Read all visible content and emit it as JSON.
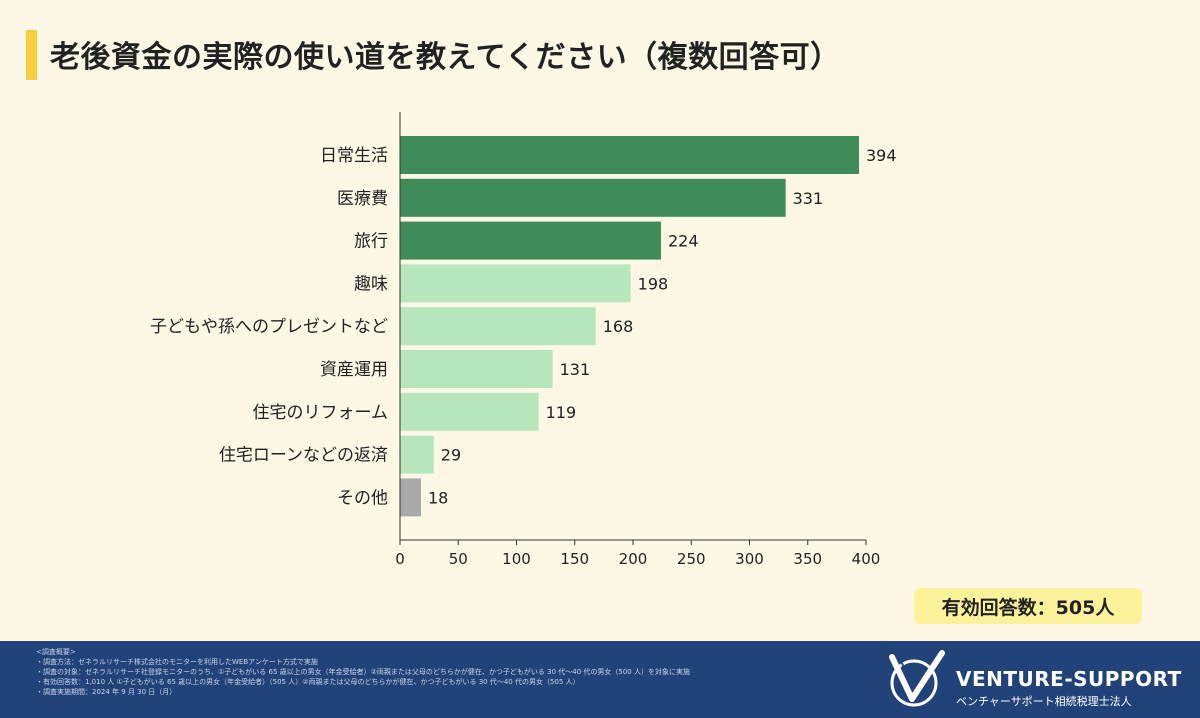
{
  "title": "老後資金の実際の使い道を教えてください（複数回答可）",
  "respondents": "有効回答数：505人",
  "chart_data": {
    "type": "bar",
    "orientation": "horizontal",
    "categories": [
      "日常生活",
      "医療費",
      "旅行",
      "趣味",
      "子どもや孫へのプレゼントなど",
      "資産運用",
      "住宅のリフォーム",
      "住宅ローンなどの返済",
      "その他"
    ],
    "values": [
      394,
      331,
      224,
      198,
      168,
      131,
      119,
      29,
      18
    ],
    "xlim": [
      0,
      400
    ],
    "xticks": [
      0,
      50,
      100,
      150,
      200,
      250,
      300,
      350,
      400
    ],
    "grid": false,
    "colors": [
      "#3f8c5a",
      "#3f8c5a",
      "#3f8c5a",
      "#b8e6bc",
      "#b8e6bc",
      "#b8e6bc",
      "#b8e6bc",
      "#b8e6bc",
      "#a9a9a9"
    ]
  },
  "footer": {
    "notes": [
      "<調査概要>",
      "・調査方法：ゼネラルリサーチ株式会社のモニターを利用したWEBアンケート方式で実施",
      "・調査の対象：ゼネラルリサーチ社登録モニターのうち、①子どもがいる 65 歳以上の男女（年金受給者）②両親または父母のどちらかが健在、かつ子どもがいる 30 代～40 代の男女（500 人）を対象に実施",
      "・有効回答数：1,010 人 ①子どもがいる 65 歳以上の男女（年金受給者）（505 人）②両親または父母のどちらかが健在、かつ子どもがいる 30 代～40 代の男女（505 人）",
      "・調査実施期間：2024 年 9 月 30 日（月）"
    ],
    "logo_text": "VENTURE-SUPPORT",
    "logo_sub": "ベンチャーサポート相続税理士法人"
  }
}
